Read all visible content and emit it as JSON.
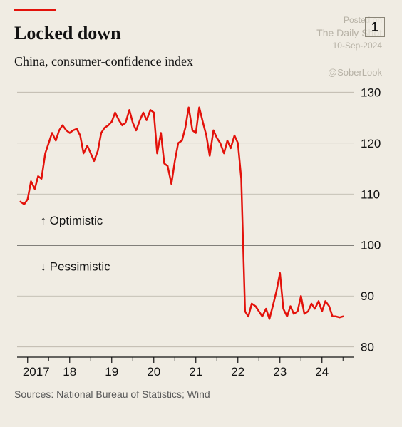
{
  "header": {
    "title": "Locked down",
    "subtitle": "China, consumer-confidence index",
    "badge": "1"
  },
  "watermark": {
    "line1": "Posted on",
    "line2": "The Daily Shot",
    "line3": "10-Sep-2024",
    "handle": "@SoberLook"
  },
  "chart": {
    "type": "line",
    "ylim": [
      78,
      132
    ],
    "yticks": [
      80,
      90,
      100,
      110,
      120,
      130
    ],
    "x_range": [
      2016.75,
      2024.75
    ],
    "xticks": [
      {
        "pos": 2017,
        "label": "2017"
      },
      {
        "pos": 2018,
        "label": "18"
      },
      {
        "pos": 2019,
        "label": "19"
      },
      {
        "pos": 2020,
        "label": "20"
      },
      {
        "pos": 2021,
        "label": "21"
      },
      {
        "pos": 2022,
        "label": "22"
      },
      {
        "pos": 2023,
        "label": "23"
      },
      {
        "pos": 2024,
        "label": "24"
      }
    ],
    "line_color": "#e3120b",
    "line_width": 2.5,
    "grid_color": "#b7b2a6",
    "baseline_100_color": "#121212",
    "baseline_100_width": 1.5,
    "gridline_width": 0.8,
    "axis_color": "#121212",
    "background_color": "#f0ece3",
    "tick_font_size": 17,
    "annotations": {
      "optimistic": "↑ Optimistic",
      "pessimistic": "↓ Pessimistic"
    },
    "data": [
      [
        2016.83,
        108.5
      ],
      [
        2016.92,
        108.0
      ],
      [
        2017.0,
        109.0
      ],
      [
        2017.08,
        112.5
      ],
      [
        2017.17,
        111.0
      ],
      [
        2017.25,
        113.5
      ],
      [
        2017.33,
        113.0
      ],
      [
        2017.42,
        118.0
      ],
      [
        2017.5,
        120.0
      ],
      [
        2017.58,
        122.0
      ],
      [
        2017.67,
        120.5
      ],
      [
        2017.75,
        122.5
      ],
      [
        2017.83,
        123.5
      ],
      [
        2017.92,
        122.5
      ],
      [
        2018.0,
        122.0
      ],
      [
        2018.08,
        122.5
      ],
      [
        2018.17,
        122.8
      ],
      [
        2018.25,
        121.5
      ],
      [
        2018.33,
        118.0
      ],
      [
        2018.42,
        119.5
      ],
      [
        2018.5,
        118.0
      ],
      [
        2018.58,
        116.5
      ],
      [
        2018.67,
        118.5
      ],
      [
        2018.75,
        122.0
      ],
      [
        2018.83,
        123.0
      ],
      [
        2018.92,
        123.5
      ],
      [
        2019.0,
        124.2
      ],
      [
        2019.08,
        126.0
      ],
      [
        2019.17,
        124.5
      ],
      [
        2019.25,
        123.5
      ],
      [
        2019.33,
        124.0
      ],
      [
        2019.42,
        126.5
      ],
      [
        2019.5,
        124.0
      ],
      [
        2019.58,
        122.5
      ],
      [
        2019.67,
        124.5
      ],
      [
        2019.75,
        126.0
      ],
      [
        2019.83,
        124.5
      ],
      [
        2019.92,
        126.5
      ],
      [
        2020.0,
        126.0
      ],
      [
        2020.08,
        118.0
      ],
      [
        2020.17,
        122.0
      ],
      [
        2020.25,
        116.0
      ],
      [
        2020.33,
        115.5
      ],
      [
        2020.42,
        112.0
      ],
      [
        2020.5,
        116.5
      ],
      [
        2020.58,
        120.0
      ],
      [
        2020.67,
        120.5
      ],
      [
        2020.75,
        123.0
      ],
      [
        2020.83,
        127.0
      ],
      [
        2020.92,
        122.5
      ],
      [
        2021.0,
        122.0
      ],
      [
        2021.08,
        127.0
      ],
      [
        2021.17,
        124.0
      ],
      [
        2021.25,
        121.5
      ],
      [
        2021.33,
        117.5
      ],
      [
        2021.42,
        122.5
      ],
      [
        2021.5,
        121.0
      ],
      [
        2021.58,
        120.0
      ],
      [
        2021.67,
        118.0
      ],
      [
        2021.75,
        120.5
      ],
      [
        2021.83,
        119.0
      ],
      [
        2021.92,
        121.5
      ],
      [
        2022.0,
        120.0
      ],
      [
        2022.08,
        113.0
      ],
      [
        2022.17,
        87.0
      ],
      [
        2022.25,
        86.0
      ],
      [
        2022.33,
        88.5
      ],
      [
        2022.42,
        88.0
      ],
      [
        2022.5,
        87.0
      ],
      [
        2022.58,
        86.0
      ],
      [
        2022.67,
        87.5
      ],
      [
        2022.75,
        85.5
      ],
      [
        2022.83,
        88.0
      ],
      [
        2022.92,
        91.0
      ],
      [
        2023.0,
        94.5
      ],
      [
        2023.08,
        87.5
      ],
      [
        2023.17,
        86.0
      ],
      [
        2023.25,
        88.0
      ],
      [
        2023.33,
        86.5
      ],
      [
        2023.42,
        87.0
      ],
      [
        2023.5,
        90.0
      ],
      [
        2023.58,
        86.5
      ],
      [
        2023.67,
        87.0
      ],
      [
        2023.75,
        88.5
      ],
      [
        2023.83,
        87.5
      ],
      [
        2023.92,
        89.0
      ],
      [
        2024.0,
        87.0
      ],
      [
        2024.08,
        89.0
      ],
      [
        2024.17,
        88.0
      ],
      [
        2024.25,
        86.0
      ],
      [
        2024.33,
        86.0
      ],
      [
        2024.42,
        85.8
      ],
      [
        2024.5,
        86.0
      ]
    ]
  },
  "source": "Sources: National Bureau of Statistics; Wind"
}
